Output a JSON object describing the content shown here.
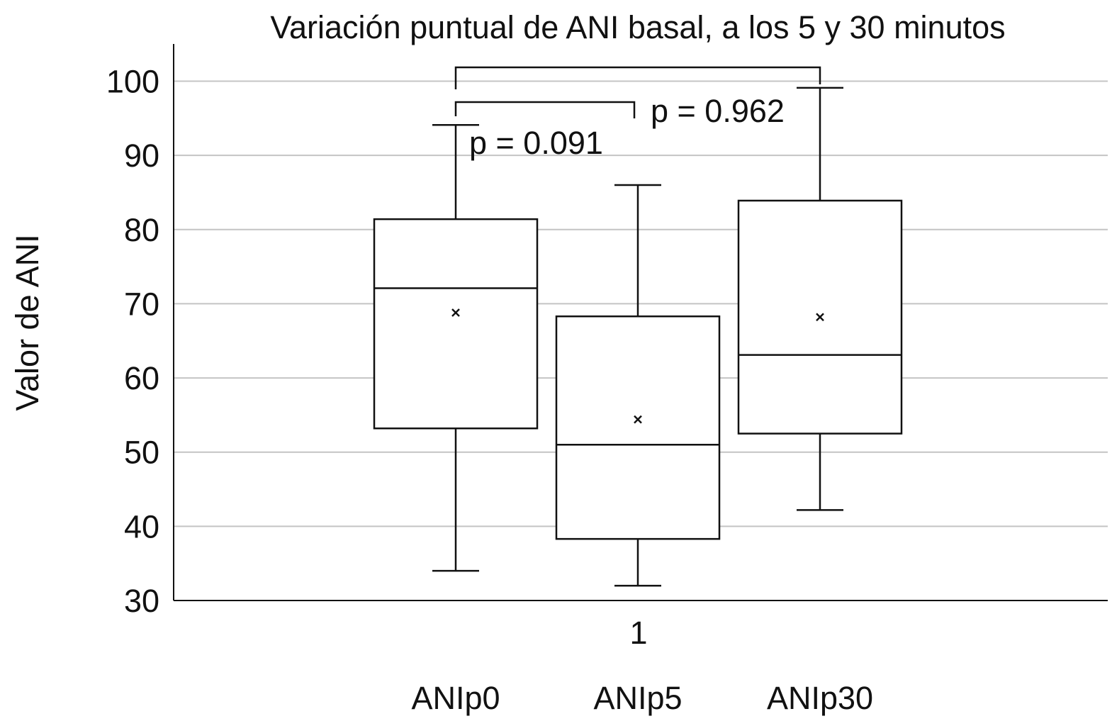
{
  "chart_data": {
    "type": "box",
    "title": "Variación puntual de ANI basal, a los 5 y 30 minutos",
    "xlabel": "",
    "ylabel": "Valor de ANI",
    "x_tick_label": "1",
    "ylim": [
      30,
      105
    ],
    "yticks": [
      30,
      40,
      50,
      60,
      70,
      80,
      90,
      100
    ],
    "grid": true,
    "legend": [
      "ANIp0",
      "ANIp5",
      "ANIp30"
    ],
    "legend_position": "bottom",
    "series": [
      {
        "name": "ANIp0",
        "min": 34,
        "q1": 53.2,
        "median": 72.1,
        "q3": 81.4,
        "max": 94.1,
        "mean": 68.8
      },
      {
        "name": "ANIp5",
        "min": 32,
        "q1": 38.3,
        "median": 51,
        "q3": 68.3,
        "max": 86,
        "mean": 54.4
      },
      {
        "name": "ANIp30",
        "min": 42.2,
        "q1": 52.5,
        "median": 63.1,
        "q3": 83.9,
        "max": 99.1,
        "mean": 68.2
      }
    ],
    "annotations": [
      {
        "text": "p = 0.091",
        "from": "ANIp0",
        "to": "ANIp5"
      },
      {
        "text": "p = 0.962",
        "from": "ANIp0",
        "to": "ANIp30"
      }
    ]
  }
}
